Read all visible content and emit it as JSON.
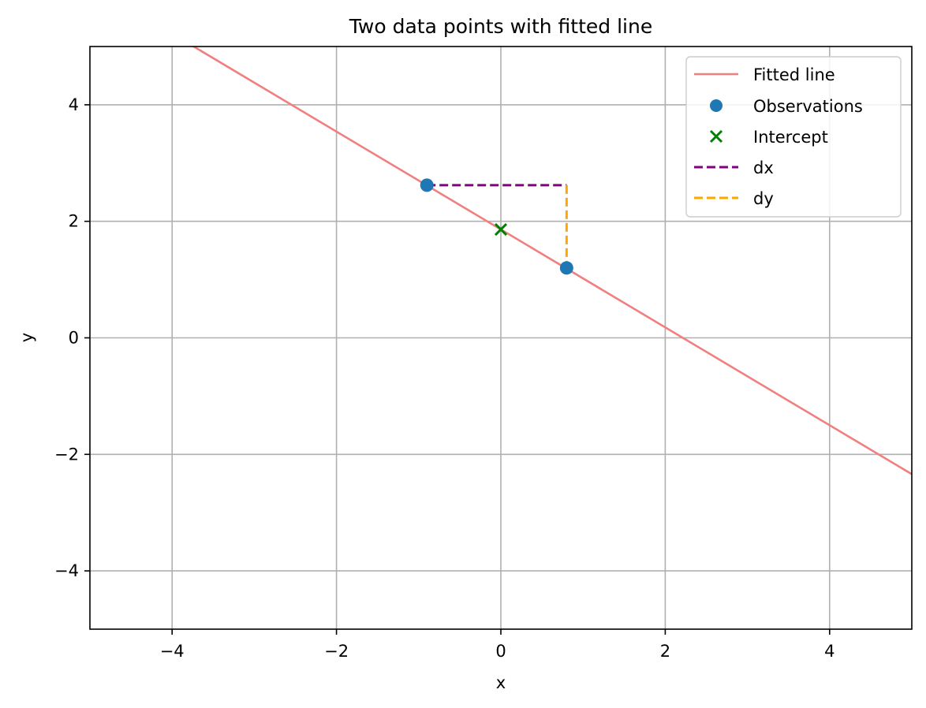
{
  "chart_data": {
    "type": "line",
    "title": "Two data points with fitted line",
    "xlabel": "x",
    "ylabel": "y",
    "xlim": [
      -5,
      5
    ],
    "ylim": [
      -5,
      5
    ],
    "xticks": [
      -4,
      -2,
      0,
      2,
      4
    ],
    "yticks": [
      -4,
      -2,
      0,
      2,
      4
    ],
    "xtick_labels": [
      "−4",
      "−2",
      "0",
      "2",
      "4"
    ],
    "ytick_labels": [
      "−4",
      "−2",
      "0",
      "2",
      "4"
    ],
    "grid": true,
    "legend_position": "top-right",
    "fitted_line": {
      "name": "Fitted line",
      "slope": -0.84,
      "intercept": 1.86,
      "color": "#f08080"
    },
    "observations": {
      "name": "Observations",
      "points": [
        [
          -0.9,
          2.62
        ],
        [
          0.8,
          1.2
        ]
      ],
      "color": "#1f77b4"
    },
    "intercept_point": {
      "name": "Intercept",
      "point": [
        0,
        1.86
      ],
      "color": "#008000"
    },
    "dx_segment": {
      "name": "dx",
      "points": [
        [
          -0.9,
          2.62
        ],
        [
          0.8,
          2.62
        ]
      ],
      "color": "#800080"
    },
    "dy_segment": {
      "name": "dy",
      "points": [
        [
          0.8,
          2.62
        ],
        [
          0.8,
          1.2
        ]
      ],
      "color": "#ffa500"
    }
  }
}
